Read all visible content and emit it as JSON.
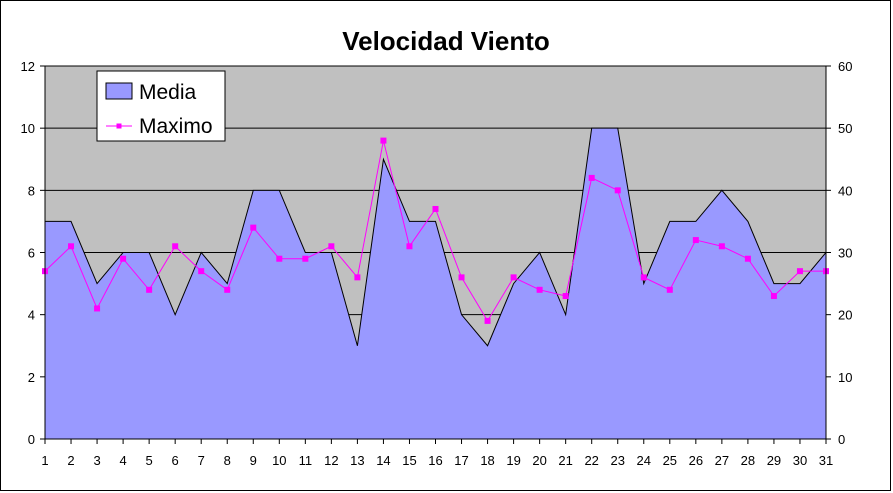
{
  "chart_data": {
    "type": "area",
    "title": "Velocidad Viento",
    "xlabel": "",
    "ylabel": "",
    "categories": [
      "1",
      "2",
      "3",
      "4",
      "5",
      "6",
      "7",
      "8",
      "9",
      "10",
      "11",
      "12",
      "13",
      "14",
      "15",
      "16",
      "17",
      "18",
      "19",
      "20",
      "21",
      "22",
      "23",
      "24",
      "25",
      "26",
      "27",
      "28",
      "29",
      "30",
      "31"
    ],
    "series": [
      {
        "name": "Media",
        "type": "area",
        "axis": "left",
        "color": "#9999ff",
        "values": [
          7,
          7,
          5,
          6,
          6,
          4,
          6,
          5,
          8,
          8,
          6,
          6,
          3,
          9,
          7,
          7,
          4,
          3,
          5,
          6,
          4,
          10,
          10,
          5,
          7,
          7,
          8,
          7,
          5,
          5,
          6
        ]
      },
      {
        "name": "Maximo",
        "type": "line",
        "axis": "right",
        "color": "#ff00ff",
        "values": [
          27,
          31,
          21,
          29,
          24,
          31,
          27,
          24,
          34,
          29,
          29,
          31,
          26,
          48,
          31,
          37,
          26,
          19,
          26,
          24,
          23,
          42,
          40,
          26,
          24,
          32,
          31,
          29,
          23,
          27,
          27
        ]
      }
    ],
    "y_left": {
      "min": 0,
      "max": 12,
      "ticks": [
        0,
        2,
        4,
        6,
        8,
        10,
        12
      ]
    },
    "y_right": {
      "min": 0,
      "max": 60,
      "ticks": [
        0,
        10,
        20,
        30,
        40,
        50,
        60
      ]
    },
    "plot_background": "#c0c0c0",
    "gridlines": true,
    "legend_position": "top-left"
  }
}
